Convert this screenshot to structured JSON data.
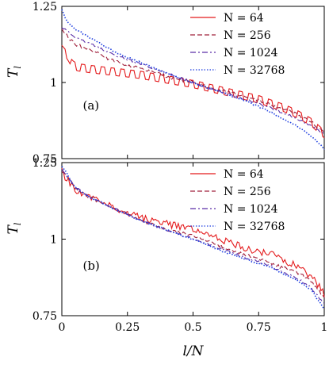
{
  "chart_data": [
    {
      "type": "line",
      "panel_label": "(a)",
      "ylabel": "T_l",
      "xlabel": "",
      "xlim": [
        0,
        1
      ],
      "ylim": [
        0.75,
        1.25
      ],
      "x_ticks": [
        0,
        0.25,
        0.5,
        0.75,
        1
      ],
      "y_ticks": [
        0.75,
        1,
        1.25
      ],
      "x_tick_labels": [],
      "y_tick_labels": [
        "0.75",
        "1",
        "1.25"
      ],
      "legend_position": "top-right",
      "series": [
        {
          "name": "N = 64",
          "color": "#e41a1c",
          "dash": "solid",
          "x": [
            0.0,
            0.02,
            0.04,
            0.06,
            0.1,
            0.2,
            0.3,
            0.4,
            0.5,
            0.6,
            0.7,
            0.75,
            0.8,
            0.85,
            0.9,
            0.95,
            1.0
          ],
          "y": [
            1.11,
            1.09,
            1.06,
            1.05,
            1.045,
            1.035,
            1.025,
            1.01,
            0.995,
            0.975,
            0.955,
            0.945,
            0.93,
            0.915,
            0.895,
            0.87,
            0.83
          ]
        },
        {
          "name": "N = 256",
          "color": "#a0203c",
          "dash": "dashed",
          "x": [
            0.0,
            0.05,
            0.1,
            0.2,
            0.3,
            0.4,
            0.5,
            0.6,
            0.7,
            0.8,
            0.9,
            0.95,
            1.0
          ],
          "y": [
            1.17,
            1.125,
            1.11,
            1.07,
            1.045,
            1.02,
            1.0,
            0.975,
            0.955,
            0.925,
            0.895,
            0.87,
            0.84
          ]
        },
        {
          "name": "N = 1024",
          "color": "#5a2ea6",
          "dash": "dashdot",
          "x": [
            0.0,
            0.05,
            0.1,
            0.2,
            0.3,
            0.4,
            0.5,
            0.6,
            0.7,
            0.8,
            0.9,
            0.95,
            1.0
          ],
          "y": [
            1.18,
            1.15,
            1.13,
            1.09,
            1.06,
            1.03,
            1.0,
            0.97,
            0.945,
            0.915,
            0.88,
            0.86,
            0.83
          ]
        },
        {
          "name": "N = 32768",
          "color": "#1f3fe0",
          "dash": "dotted",
          "x": [
            0.0,
            0.02,
            0.05,
            0.1,
            0.2,
            0.3,
            0.4,
            0.5,
            0.6,
            0.7,
            0.8,
            0.9,
            0.95,
            1.0
          ],
          "y": [
            1.24,
            1.2,
            1.175,
            1.15,
            1.1,
            1.065,
            1.03,
            1.0,
            0.97,
            0.94,
            0.9,
            0.855,
            0.825,
            0.78
          ]
        }
      ]
    },
    {
      "type": "line",
      "panel_label": "(b)",
      "ylabel": "T_l",
      "xlabel": "l/N",
      "xlim": [
        0,
        1
      ],
      "ylim": [
        0.75,
        1.25
      ],
      "x_ticks": [
        0,
        0.25,
        0.5,
        0.75,
        1
      ],
      "y_ticks": [
        0.75,
        1,
        1.25
      ],
      "x_tick_labels": [
        "0",
        "0.25",
        "0.5",
        "0.75",
        "1"
      ],
      "y_tick_labels": [
        "0.75",
        "1",
        "1.25"
      ],
      "legend_position": "top-right",
      "series": [
        {
          "name": "N = 64",
          "color": "#e41a1c",
          "dash": "solid",
          "x": [
            0.0,
            0.05,
            0.1,
            0.2,
            0.3,
            0.4,
            0.5,
            0.6,
            0.7,
            0.8,
            0.85,
            0.9,
            0.95,
            1.0
          ],
          "y": [
            1.22,
            1.16,
            1.14,
            1.1,
            1.07,
            1.05,
            1.03,
            1.0,
            0.97,
            0.95,
            0.93,
            0.91,
            0.88,
            0.82
          ]
        },
        {
          "name": "N = 256",
          "color": "#a0203c",
          "dash": "dashed",
          "x": [
            0.0,
            0.05,
            0.1,
            0.2,
            0.3,
            0.4,
            0.5,
            0.6,
            0.7,
            0.8,
            0.9,
            0.95,
            1.0
          ],
          "y": [
            1.22,
            1.17,
            1.14,
            1.1,
            1.06,
            1.03,
            1.01,
            0.98,
            0.95,
            0.92,
            0.89,
            0.86,
            0.81
          ]
        },
        {
          "name": "N = 1024",
          "color": "#5a2ea6",
          "dash": "dashdot",
          "x": [
            0.0,
            0.05,
            0.1,
            0.2,
            0.3,
            0.4,
            0.5,
            0.6,
            0.7,
            0.8,
            0.9,
            0.95,
            1.0
          ],
          "y": [
            1.23,
            1.17,
            1.14,
            1.1,
            1.06,
            1.03,
            1.0,
            0.97,
            0.94,
            0.91,
            0.87,
            0.84,
            0.79
          ]
        },
        {
          "name": "N = 32768",
          "color": "#1f3fe0",
          "dash": "dotted",
          "x": [
            0.0,
            0.05,
            0.1,
            0.2,
            0.3,
            0.4,
            0.5,
            0.6,
            0.7,
            0.8,
            0.9,
            0.95,
            1.0
          ],
          "y": [
            1.24,
            1.17,
            1.14,
            1.1,
            1.06,
            1.03,
            1.0,
            0.965,
            0.935,
            0.905,
            0.865,
            0.835,
            0.77
          ]
        }
      ]
    }
  ]
}
